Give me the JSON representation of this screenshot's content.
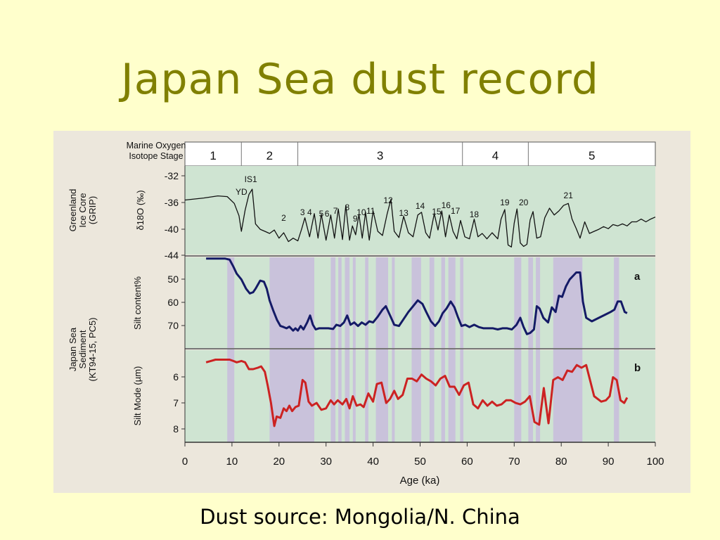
{
  "slide": {
    "title": "Japan Sea dust record",
    "caption": "Dust source: Mongolia/N. China"
  },
  "figure": {
    "stage_header": {
      "label_line1": "Marine Oxygen",
      "label_line2": "Isotope Stage",
      "stages": [
        {
          "label": "1",
          "from": 0,
          "to": 12
        },
        {
          "label": "2",
          "from": 12,
          "to": 24
        },
        {
          "label": "3",
          "from": 24,
          "to": 59
        },
        {
          "label": "4",
          "from": 59,
          "to": 73
        },
        {
          "label": "5",
          "from": 73,
          "to": 100
        }
      ]
    },
    "panel_group_labels": {
      "greenland": [
        "Greenland",
        "Ice Core",
        "(GRIP)"
      ],
      "japan": [
        "Japan Sea",
        "Sediment",
        "(KT94-15, PC5)"
      ]
    },
    "x_axis": {
      "label": "Age (ka)",
      "ticks": [
        "0",
        "10",
        "20",
        "30",
        "40",
        "50",
        "60",
        "70",
        "80",
        "90",
        "100"
      ]
    }
  },
  "chart_data": [
    {
      "type": "line",
      "panel": "Greenland Ice Core (GRIP)",
      "ylabel": "δ18O (‰)",
      "yticks": [
        "-32",
        "-36",
        "-40",
        "-44"
      ],
      "ylim": [
        -44,
        -31
      ],
      "y_inverted": false,
      "line_color": "#111111",
      "annotations": [
        {
          "label": "YD",
          "x": 12
        },
        {
          "label": "IS1",
          "x": 14
        },
        {
          "label": "2",
          "x": 21
        },
        {
          "label": "3",
          "x": 25
        },
        {
          "label": "4",
          "x": 26.5
        },
        {
          "label": "5",
          "x": 29
        },
        {
          "label": "6",
          "x": 30.2
        },
        {
          "label": "7",
          "x": 32
        },
        {
          "label": "8",
          "x": 34.5
        },
        {
          "label": "9",
          "x": 36.2
        },
        {
          "label": "10",
          "x": 37.5
        },
        {
          "label": "11",
          "x": 39.5
        },
        {
          "label": "12",
          "x": 43.2
        },
        {
          "label": "13",
          "x": 46.5
        },
        {
          "label": "14",
          "x": 50
        },
        {
          "label": "15",
          "x": 53.5
        },
        {
          "label": "16",
          "x": 55.5
        },
        {
          "label": "17",
          "x": 57.5
        },
        {
          "label": "18",
          "x": 61.5
        },
        {
          "label": "19",
          "x": 68
        },
        {
          "label": "20",
          "x": 72
        },
        {
          "label": "21",
          "x": 81.5
        }
      ],
      "series": [
        {
          "x": [
            0,
            4,
            7,
            9,
            10.5,
            11.5,
            12,
            12.8,
            13.6,
            14.3,
            15,
            16,
            17,
            18,
            19,
            20,
            21,
            22,
            23,
            24,
            24.8,
            25.5,
            26.5,
            27.5,
            28.3,
            29,
            30,
            31,
            31.8,
            32.6,
            33.5,
            34.2,
            35,
            35.6,
            36.3,
            37,
            37.7,
            38.4,
            39.2,
            40,
            41,
            42,
            43,
            43.8,
            44.5,
            45.5,
            46.5,
            47.5,
            48.5,
            49.5,
            50.3,
            51.2,
            52,
            53,
            53.8,
            54.6,
            55.4,
            56.2,
            57,
            57.8,
            58.6,
            59.5,
            60.5,
            61.5,
            62.3,
            63.2,
            64.2,
            65.3,
            66.5,
            67.2,
            68,
            68.7,
            69.4,
            70,
            70.6,
            71.3,
            72,
            72.7,
            73.4,
            74,
            74.8,
            75.6,
            76.5,
            77.5,
            78.5,
            79.5,
            80.5,
            81.5,
            82.3,
            83.2,
            84,
            85,
            86,
            87,
            88,
            89,
            90,
            91,
            92,
            93,
            94,
            95,
            96,
            97,
            98,
            99,
            100
          ],
          "y": [
            -36,
            -35.7,
            -35.4,
            -35.5,
            -36.5,
            -38.3,
            -40.6,
            -37.5,
            -35.2,
            -34.4,
            -39.5,
            -40.3,
            -40.6,
            -40.9,
            -40.4,
            -41.6,
            -40.8,
            -42.1,
            -41.6,
            -42,
            -40.3,
            -38.6,
            -41.4,
            -38,
            -41.6,
            -38.1,
            -41.9,
            -38.2,
            -41.6,
            -37.3,
            -41.8,
            -36.8,
            -41.9,
            -39.8,
            -41.1,
            -38.1,
            -41.6,
            -37.8,
            -41.9,
            -37.6,
            -40.6,
            -41.2,
            -38,
            -35.9,
            -40.6,
            -41.5,
            -38.4,
            -40.8,
            -41.4,
            -38.2,
            -37.8,
            -40.8,
            -41.6,
            -38,
            -40.4,
            -37.6,
            -41.4,
            -38.2,
            -40.6,
            -41.7,
            -39,
            -41.4,
            -41.7,
            -38.8,
            -41.4,
            -40.9,
            -41.7,
            -40.8,
            -41.7,
            -38.8,
            -37.4,
            -42.6,
            -42.9,
            -39.4,
            -37.3,
            -42.3,
            -42.8,
            -42.5,
            -38.9,
            -37.7,
            -41.6,
            -41.4,
            -38.6,
            -37.2,
            -38.2,
            -37.6,
            -36.8,
            -36.5,
            -38.8,
            -40.2,
            -41.6,
            -39.2,
            -40.9,
            -40.6,
            -40.3,
            -39.9,
            -40.2,
            -39.6,
            -39.8,
            -39.5,
            -39.8,
            -39.2,
            -39.2,
            -38.8,
            -39.2,
            -38.8,
            -38.5
          ]
        }
      ]
    },
    {
      "type": "line",
      "panel": "a",
      "ylabel": "Silt content%",
      "yticks": [
        "50",
        "60",
        "70"
      ],
      "ylim": [
        43,
        82
      ],
      "y_inverted": true,
      "line_color": "#141a66",
      "series": [
        {
          "x": [
            4.5,
            6,
            7.5,
            8.5,
            9.5,
            10.3,
            11,
            12,
            13,
            13.8,
            14.5,
            15,
            16,
            16.8,
            17.4,
            18,
            18.8,
            19.6,
            20.3,
            21,
            21.6,
            22.2,
            23,
            23.5,
            24,
            24.6,
            25.2,
            26,
            26.6,
            27.2,
            27.8,
            28.5,
            29.5,
            30.5,
            31.5,
            32.2,
            33,
            33.8,
            34.5,
            35.2,
            36,
            36.8,
            37.6,
            38.4,
            39.2,
            40,
            41,
            42,
            42.7,
            43.5,
            44.5,
            45.5,
            46.5,
            47.5,
            48.5,
            49.5,
            50.5,
            51.3,
            52.3,
            53.2,
            54,
            54.8,
            55.6,
            56.5,
            57.3,
            58,
            58.8,
            59.6,
            60.5,
            61.5,
            62.5,
            63.5,
            64.5,
            65.5,
            66.5,
            67.5,
            68.5,
            69.5,
            70.5,
            71.3,
            72,
            72.7,
            73.4,
            74.2,
            74.8,
            75.4,
            76.2,
            77.2,
            78,
            78.8,
            79.5,
            80.2,
            81,
            81.8,
            82.5,
            83.2,
            84,
            84.6,
            85.3,
            86.5,
            88,
            89.5,
            90.5,
            91.3,
            92,
            92.7,
            93.5,
            94
          ],
          "y": [
            43.5,
            43.5,
            43.5,
            43.5,
            44,
            47,
            50,
            52.5,
            56.5,
            58.5,
            58,
            56.5,
            53,
            53.5,
            56.5,
            61.5,
            66,
            70,
            72.5,
            73,
            73.5,
            72.8,
            74.5,
            73.5,
            74.5,
            72.5,
            74,
            71,
            68,
            72,
            74,
            73.5,
            73.5,
            73.5,
            73.8,
            72,
            72.5,
            71,
            68,
            72,
            71,
            72.5,
            71,
            72,
            70.5,
            71,
            68.5,
            65.5,
            64,
            67.5,
            72,
            72.5,
            69.5,
            66.5,
            64,
            61.5,
            63,
            66.5,
            70.5,
            72.5,
            70.5,
            67,
            65,
            62,
            64.5,
            68.5,
            72.5,
            72,
            73,
            72,
            73,
            73.5,
            73.5,
            73.5,
            74,
            73.5,
            73.5,
            74,
            72,
            69,
            73,
            76,
            75.5,
            74,
            64,
            65,
            69,
            71,
            64.5,
            66.5,
            59.5,
            60,
            55.5,
            52.5,
            51,
            49.5,
            49.5,
            62,
            69,
            70.5,
            69,
            67.5,
            66.5,
            65.5,
            62,
            62,
            66.5,
            67
          ]
        }
      ]
    },
    {
      "type": "line",
      "panel": "b",
      "ylabel": "Silt Mode (µm)",
      "yticks": [
        "6",
        "7",
        "8"
      ],
      "ylim": [
        5.1,
        8.5
      ],
      "y_inverted": true,
      "line_color": "#cc2222",
      "series": [
        {
          "x": [
            4.5,
            5.5,
            6.5,
            7.5,
            8.5,
            9.5,
            10.3,
            11,
            12,
            12.8,
            13.6,
            14.5,
            15.5,
            16.2,
            17,
            17.6,
            18.3,
            19,
            19.5,
            20.3,
            21,
            21.6,
            22.2,
            22.8,
            23.5,
            24.2,
            25,
            25.6,
            26.3,
            27,
            28,
            29,
            30,
            31,
            31.7,
            32.5,
            33.5,
            34.3,
            35,
            35.7,
            36.5,
            37.3,
            38,
            39,
            40,
            40.8,
            41.8,
            42.8,
            43.6,
            44.5,
            45.3,
            46.3,
            47.3,
            48.3,
            49.3,
            50.3,
            51.3,
            52.3,
            53.3,
            54.3,
            55.3,
            56.3,
            57.3,
            58.3,
            59.3,
            60.3,
            61.3,
            62.3,
            63.3,
            64.3,
            65.3,
            66.3,
            67.3,
            68.3,
            69.3,
            70.3,
            71.3,
            72.3,
            73.3,
            74.3,
            75.3,
            76.3,
            77.3,
            78.3,
            79.3,
            80.3,
            81.3,
            82.3,
            83.3,
            84.3,
            85.3,
            87,
            88.5,
            89.5,
            90.3,
            91,
            91.8,
            92.6,
            93.4,
            94
          ],
          "y": [
            5.55,
            5.5,
            5.45,
            5.45,
            5.45,
            5.45,
            5.5,
            5.55,
            5.5,
            5.55,
            5.8,
            5.8,
            5.75,
            5.7,
            5.9,
            6.4,
            7.05,
            7.9,
            7.55,
            7.6,
            7.25,
            7.35,
            7.15,
            7.35,
            7.2,
            7.15,
            6.2,
            6.3,
            7.0,
            7.15,
            7.05,
            7.3,
            7.25,
            6.95,
            7.1,
            6.95,
            7.1,
            6.9,
            7.25,
            6.8,
            7.15,
            7.1,
            7.2,
            6.7,
            7.0,
            6.35,
            6.3,
            7.05,
            6.9,
            6.6,
            6.9,
            6.75,
            6.15,
            6.15,
            6.25,
            6.0,
            6.15,
            6.25,
            6.4,
            6.15,
            6.05,
            6.45,
            6.45,
            6.75,
            6.4,
            6.3,
            7.1,
            7.25,
            6.95,
            7.15,
            7.0,
            7.15,
            7.1,
            6.95,
            6.95,
            7.05,
            7.1,
            7.0,
            6.8,
            7.75,
            7.85,
            6.5,
            7.8,
            6.2,
            6.1,
            6.2,
            5.85,
            5.9,
            5.65,
            5.75,
            5.65,
            6.8,
            7.0,
            6.95,
            6.8,
            6.1,
            6.2,
            6.95,
            7.05,
            6.85
          ]
        }
      ]
    }
  ]
}
